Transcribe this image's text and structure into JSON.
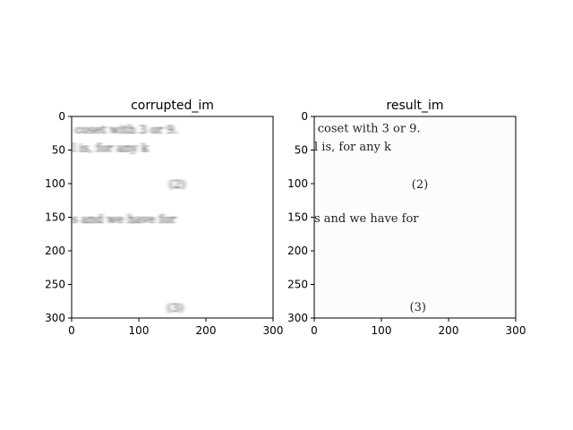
{
  "chart_data": [
    {
      "type": "image",
      "title": "corrupted_im",
      "xlim": [
        0,
        300
      ],
      "ylim": [
        300,
        0
      ],
      "xticks": [
        0,
        100,
        200,
        300
      ],
      "yticks": [
        0,
        50,
        100,
        150,
        200,
        250,
        300
      ],
      "background": "#ffffff",
      "blurred": true,
      "text_lines": [
        {
          "text": "coset with 3 or 9.",
          "x": 5,
          "y": 20
        },
        {
          "text": "l is, for any k",
          "x": 0,
          "y": 47
        },
        {
          "text": "(2)",
          "x": 145,
          "y": 101
        },
        {
          "text": "s and we have for",
          "x": 0,
          "y": 153
        },
        {
          "text": "(3)",
          "x": 142,
          "y": 285
        }
      ]
    },
    {
      "type": "image",
      "title": "result_im",
      "xlim": [
        0,
        300
      ],
      "ylim": [
        300,
        0
      ],
      "xticks": [
        0,
        100,
        200,
        300
      ],
      "yticks": [
        0,
        50,
        100,
        150,
        200,
        250,
        300
      ],
      "background": "#fcfcfc",
      "blurred": false,
      "text_lines": [
        {
          "text": "coset with 3 or 9.",
          "x": 5,
          "y": 18
        },
        {
          "text": "l is, for any k",
          "x": 0,
          "y": 45
        },
        {
          "text": "(2)",
          "x": 145,
          "y": 101
        },
        {
          "text": "s and we have for",
          "x": 0,
          "y": 152
        },
        {
          "text": "(3)",
          "x": 142,
          "y": 284
        }
      ]
    }
  ]
}
